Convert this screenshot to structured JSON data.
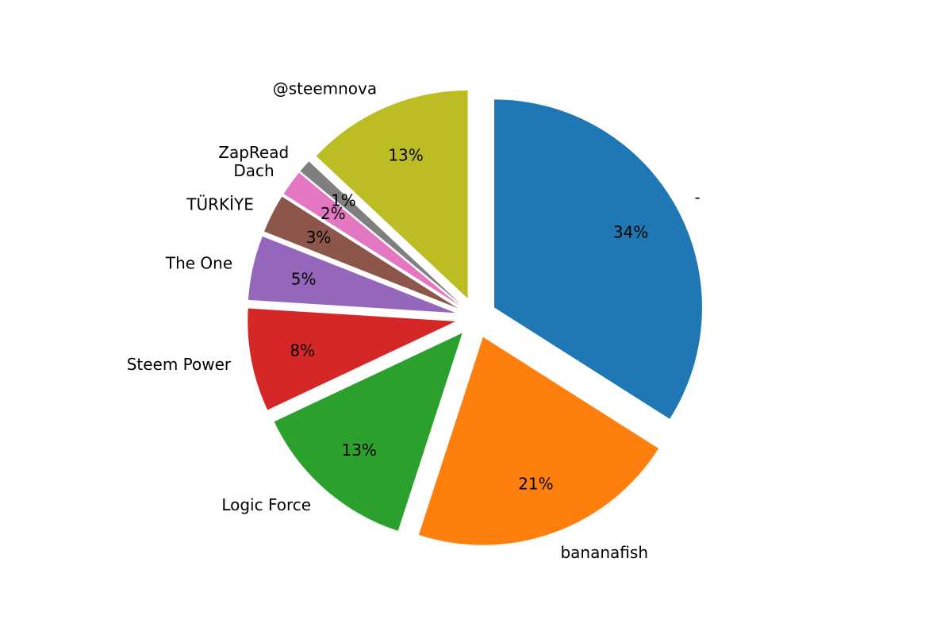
{
  "chart_data": {
    "type": "pie",
    "title": "",
    "start_angle_deg": 90,
    "direction": "clockwise",
    "slices": [
      {
        "label": "-",
        "percent": 34,
        "value_fraction": 0.34,
        "color": "#1f77b4",
        "pct_label": "34%"
      },
      {
        "label": "bananafish",
        "percent": 21,
        "value_fraction": 0.21,
        "color": "#ff7f0e",
        "pct_label": "21%"
      },
      {
        "label": "Logic Force",
        "percent": 13,
        "value_fraction": 0.13,
        "color": "#2ca02c",
        "pct_label": "13%"
      },
      {
        "label": "Steem Power",
        "percent": 8,
        "value_fraction": 0.08,
        "color": "#d62728",
        "pct_label": "8%"
      },
      {
        "label": "The One",
        "percent": 5,
        "value_fraction": 0.05,
        "color": "#9467bd",
        "pct_label": "5%"
      },
      {
        "label": "TÜRKİYE",
        "percent": 3,
        "value_fraction": 0.03,
        "color": "#8c564b",
        "pct_label": "3%"
      },
      {
        "label": "Dach",
        "percent": 2,
        "value_fraction": 0.02,
        "color": "#e377c2",
        "pct_label": "2%"
      },
      {
        "label": "ZapRead",
        "percent": 1,
        "value_fraction": 0.01,
        "color": "#7f7f7f",
        "pct_label": "1%"
      },
      {
        "label": "@steemnova",
        "percent": 13,
        "value_fraction": 0.13,
        "color": "#bcbd22",
        "pct_label": "13%"
      }
    ],
    "exploded": true,
    "legend": "none"
  }
}
